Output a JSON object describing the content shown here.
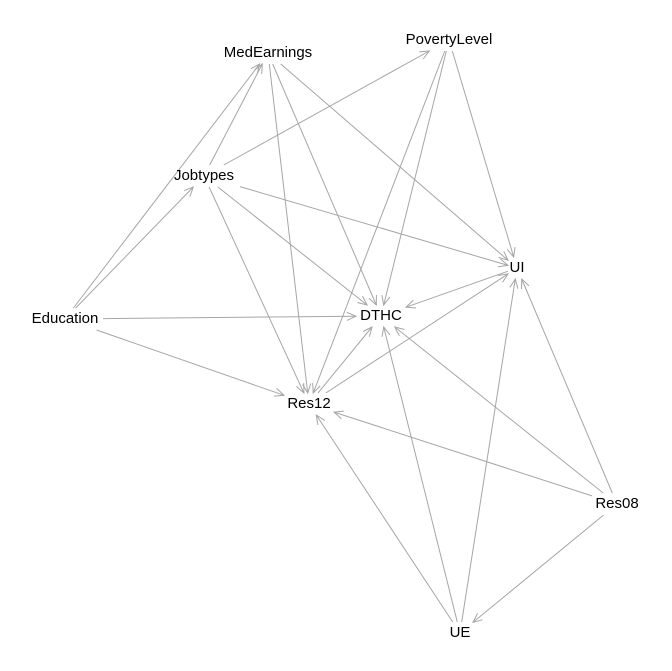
{
  "graph": {
    "nodes": [
      {
        "id": "MedEarnings",
        "label": "MedEarnings"
      },
      {
        "id": "PovertyLevel",
        "label": "PovertyLevel"
      },
      {
        "id": "Jobtypes",
        "label": "Jobtypes"
      },
      {
        "id": "UI",
        "label": "UI"
      },
      {
        "id": "Education",
        "label": "Education"
      },
      {
        "id": "DTHC",
        "label": "DTHC"
      },
      {
        "id": "Res12",
        "label": "Res12"
      },
      {
        "id": "Res08",
        "label": "Res08"
      },
      {
        "id": "UE",
        "label": "UE"
      }
    ],
    "edges": [
      {
        "from": "Education",
        "to": "MedEarnings"
      },
      {
        "from": "Education",
        "to": "Jobtypes"
      },
      {
        "from": "Education",
        "to": "DTHC"
      },
      {
        "from": "Education",
        "to": "Res12"
      },
      {
        "from": "Jobtypes",
        "to": "MedEarnings"
      },
      {
        "from": "Jobtypes",
        "to": "PovertyLevel"
      },
      {
        "from": "Jobtypes",
        "to": "UI"
      },
      {
        "from": "Jobtypes",
        "to": "DTHC"
      },
      {
        "from": "Jobtypes",
        "to": "Res12"
      },
      {
        "from": "MedEarnings",
        "to": "UI"
      },
      {
        "from": "MedEarnings",
        "to": "DTHC"
      },
      {
        "from": "MedEarnings",
        "to": "Res12"
      },
      {
        "from": "PovertyLevel",
        "to": "UI"
      },
      {
        "from": "PovertyLevel",
        "to": "DTHC"
      },
      {
        "from": "PovertyLevel",
        "to": "Res12"
      },
      {
        "from": "UI",
        "to": "DTHC"
      },
      {
        "from": "Res12",
        "to": "DTHC"
      },
      {
        "from": "Res12",
        "to": "UI"
      },
      {
        "from": "Res08",
        "to": "UI"
      },
      {
        "from": "Res08",
        "to": "DTHC"
      },
      {
        "from": "Res08",
        "to": "Res12"
      },
      {
        "from": "Res08",
        "to": "UE"
      },
      {
        "from": "UE",
        "to": "Res12"
      },
      {
        "from": "UE",
        "to": "DTHC"
      },
      {
        "from": "UE",
        "to": "UI"
      }
    ]
  }
}
